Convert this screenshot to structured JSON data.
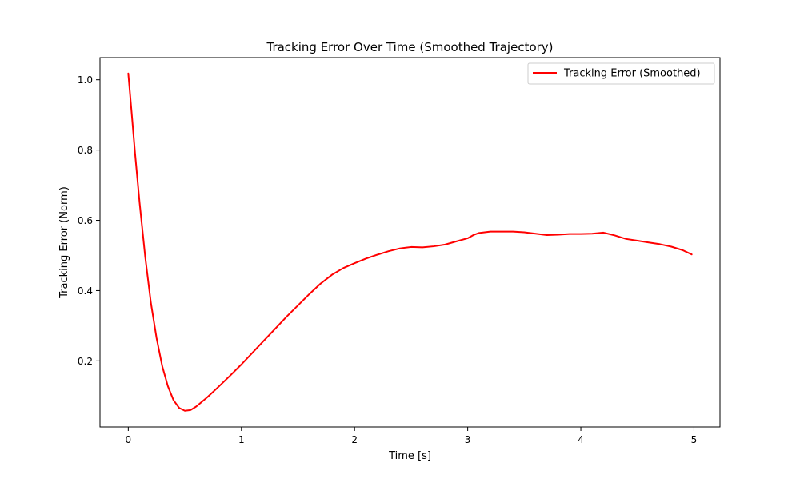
{
  "chart_data": {
    "type": "line",
    "title": "Tracking Error Over Time (Smoothed Trajectory)",
    "xlabel": "Time [s]",
    "ylabel": "Tracking Error (Norm)",
    "xlim": [
      -0.25,
      5.23
    ],
    "ylim": [
      0.012,
      1.063
    ],
    "xticks": [
      0,
      1,
      2,
      3,
      4,
      5
    ],
    "xtick_labels": [
      "0",
      "1",
      "2",
      "3",
      "4",
      "5"
    ],
    "yticks": [
      0.2,
      0.4,
      0.6,
      0.8,
      1.0
    ],
    "ytick_labels": [
      "0.2",
      "0.4",
      "0.6",
      "0.8",
      "1.0"
    ],
    "grid": false,
    "legend": {
      "position": "top-right",
      "entries": [
        "Tracking Error (Smoothed)"
      ]
    },
    "series": [
      {
        "name": "Tracking Error (Smoothed)",
        "color": "#ff0000",
        "x": [
          0,
          0.03,
          0.06,
          0.1,
          0.15,
          0.2,
          0.25,
          0.3,
          0.35,
          0.4,
          0.45,
          0.5,
          0.55,
          0.6,
          0.7,
          0.8,
          0.9,
          1.0,
          1.1,
          1.2,
          1.3,
          1.4,
          1.5,
          1.6,
          1.7,
          1.8,
          1.9,
          2.0,
          2.1,
          2.2,
          2.3,
          2.4,
          2.5,
          2.6,
          2.7,
          2.8,
          2.9,
          3.0,
          3.05,
          3.1,
          3.2,
          3.3,
          3.4,
          3.5,
          3.6,
          3.7,
          3.8,
          3.9,
          4.0,
          4.1,
          4.2,
          4.3,
          4.4,
          4.5,
          4.6,
          4.7,
          4.8,
          4.9,
          4.98
        ],
        "values": [
          1.018,
          0.905,
          0.79,
          0.65,
          0.495,
          0.365,
          0.265,
          0.185,
          0.128,
          0.088,
          0.066,
          0.058,
          0.06,
          0.07,
          0.097,
          0.127,
          0.158,
          0.19,
          0.224,
          0.258,
          0.292,
          0.326,
          0.358,
          0.39,
          0.42,
          0.445,
          0.464,
          0.478,
          0.491,
          0.502,
          0.512,
          0.52,
          0.524,
          0.523,
          0.526,
          0.531,
          0.54,
          0.549,
          0.558,
          0.564,
          0.568,
          0.568,
          0.568,
          0.566,
          0.562,
          0.558,
          0.559,
          0.561,
          0.561,
          0.562,
          0.565,
          0.557,
          0.547,
          0.542,
          0.537,
          0.532,
          0.525,
          0.515,
          0.503
        ]
      }
    ]
  }
}
